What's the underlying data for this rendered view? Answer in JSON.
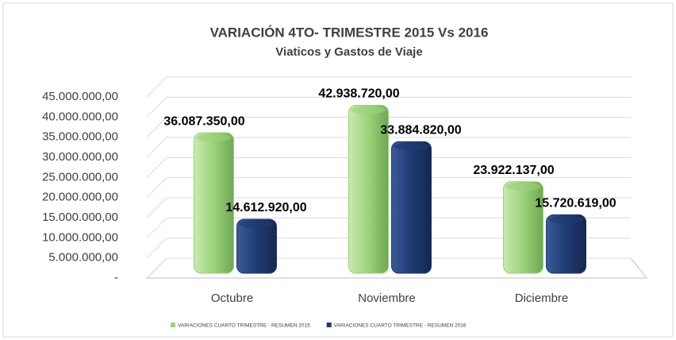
{
  "chart_data": {
    "type": "bar",
    "title": "VARIACIÓN 4TO- TRIMESTRE 2015 Vs 2016",
    "subtitle": "Viaticos y Gastos de Viaje",
    "categories": [
      "Octubre",
      "Noviembre",
      "Diciembre"
    ],
    "series": [
      {
        "name": "VARIACIONES CUARTO TRIMESTRE - RESUMEN 2015",
        "color": "#9bd27a",
        "values": [
          36087350,
          42938720,
          23922137
        ],
        "value_labels": [
          "36.087.350,00",
          "42.938.720,00",
          "23.922.137,00"
        ]
      },
      {
        "name": "VARIACIONES CUARTO TRIMESTRE - RESUMEN 2016",
        "color": "#1f3b73",
        "values": [
          14612920,
          33884820,
          15720619
        ],
        "value_labels": [
          "14.612.920,00",
          "33.884.820,00",
          "15.720.619,00"
        ]
      }
    ],
    "ylim": [
      0,
      45000000
    ],
    "yticks": [
      {
        "value": 0,
        "label": "-"
      },
      {
        "value": 5000000,
        "label": "5.000.000,00"
      },
      {
        "value": 10000000,
        "label": "10.000.000,00"
      },
      {
        "value": 15000000,
        "label": "15.000.000,00"
      },
      {
        "value": 20000000,
        "label": "20.000.000,00"
      },
      {
        "value": 25000000,
        "label": "25.000.000,00"
      },
      {
        "value": 30000000,
        "label": "30.000.000,00"
      },
      {
        "value": 35000000,
        "label": "35.000.000,00"
      },
      {
        "value": 40000000,
        "label": "40.000.000,00"
      },
      {
        "value": 45000000,
        "label": "45.000.000,00"
      }
    ],
    "grid": true,
    "legend": "bottom"
  }
}
